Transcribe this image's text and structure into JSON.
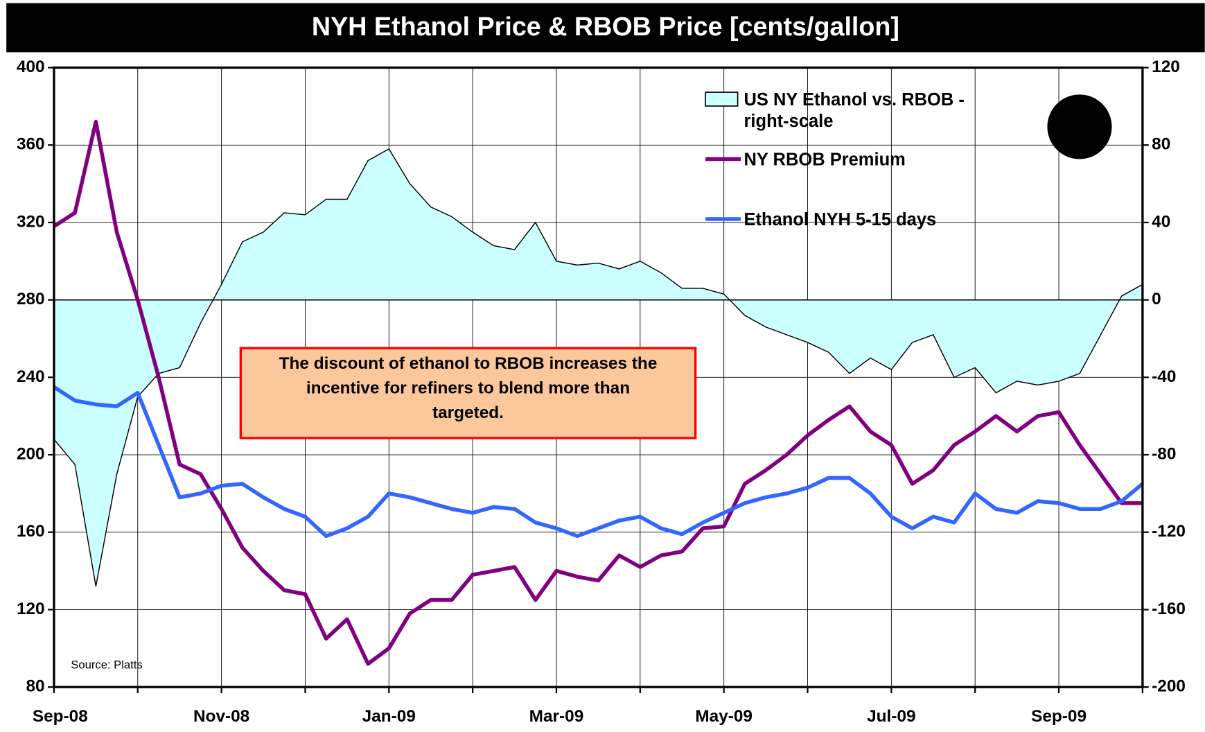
{
  "chart_data": {
    "type": "line",
    "title": "NYH Ethanol Price & RBOB Price [cents/gallon]",
    "categories": [
      "Sep-08",
      null,
      null,
      null,
      null,
      null,
      null,
      null,
      "Nov-08",
      null,
      null,
      null,
      null,
      null,
      null,
      null,
      "Jan-09",
      null,
      null,
      null,
      null,
      null,
      null,
      null,
      "Mar-09",
      null,
      null,
      null,
      null,
      null,
      null,
      null,
      "May-09",
      null,
      null,
      null,
      null,
      null,
      null,
      null,
      "Jul-09",
      null,
      null,
      null,
      null,
      null,
      null,
      null,
      "Sep-09",
      null,
      null,
      null,
      null
    ],
    "series": [
      {
        "name": "US NY Ethanol vs. RBOB - right-scale",
        "type": "area",
        "axis": "y2",
        "color": "#ccffff",
        "edge_color": "#000000",
        "values": [
          -72,
          -85,
          -148,
          -90,
          -50,
          -38,
          -35,
          -12,
          8,
          30,
          35,
          45,
          44,
          52,
          52,
          72,
          78,
          60,
          48,
          43,
          35,
          28,
          26,
          40,
          20,
          18,
          19,
          16,
          20,
          14,
          6,
          6,
          3,
          -8,
          -14,
          -18,
          -22,
          -27,
          -38,
          -30,
          -36,
          -22,
          -18,
          -40,
          -35,
          -48,
          -42,
          -44,
          -42,
          -38,
          -18,
          2,
          8
        ]
      },
      {
        "name": "NY RBOB Premium",
        "type": "line",
        "color": "#800080",
        "values": [
          318,
          325,
          372,
          315,
          280,
          240,
          195,
          190,
          172,
          152,
          140,
          130,
          128,
          105,
          115,
          92,
          100,
          118,
          125,
          125,
          138,
          140,
          142,
          125,
          140,
          137,
          135,
          148,
          142,
          148,
          150,
          162,
          163,
          185,
          192,
          200,
          210,
          218,
          225,
          212,
          205,
          185,
          192,
          205,
          212,
          220,
          212,
          220,
          222,
          205,
          190,
          175,
          175
        ]
      },
      {
        "name": "Ethanol NYH 5-15 days",
        "type": "line",
        "color": "#3366ff",
        "values": [
          235,
          228,
          226,
          225,
          232,
          205,
          178,
          180,
          184,
          185,
          178,
          172,
          168,
          158,
          162,
          168,
          180,
          178,
          175,
          172,
          170,
          173,
          172,
          165,
          162,
          158,
          162,
          166,
          168,
          162,
          159,
          165,
          170,
          175,
          178,
          180,
          183,
          188,
          188,
          180,
          168,
          162,
          168,
          165,
          180,
          172,
          170,
          176,
          175,
          172,
          172,
          176,
          185
        ]
      }
    ],
    "ylim": [
      80,
      400
    ],
    "yticks": [
      80,
      120,
      160,
      200,
      240,
      280,
      320,
      360,
      400
    ],
    "y2lim": [
      -200,
      120
    ],
    "y2ticks": [
      -200,
      -160,
      -120,
      -80,
      -40,
      0,
      40,
      80,
      120
    ],
    "grid": true,
    "legend": "upper right",
    "annotation": [
      "The discount of ethanol to RBOB increases the",
      "incentive for refiners to blend more than",
      "targeted."
    ],
    "source": "Source: Platts"
  }
}
